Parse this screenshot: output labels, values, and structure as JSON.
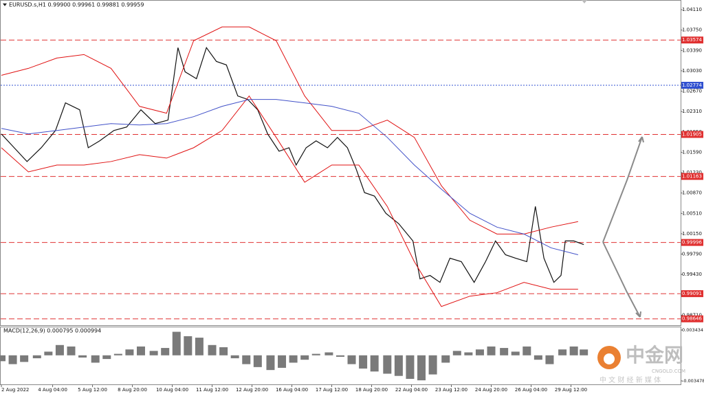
{
  "chart_data": [
    {
      "type": "line",
      "title": "EURUSD.s,H1  0.99900 0.99961 0.99881 0.99959",
      "xlim": [
        0,
        477
      ],
      "ylim": [
        0.98533,
        1.04269
      ],
      "xticks": [
        {
          "value": 0,
          "label": "2 Aug 2022"
        },
        {
          "value": 36,
          "label": "4 Aug 04:00"
        },
        {
          "value": 64,
          "label": "5 Aug 12:00"
        },
        {
          "value": 92,
          "label": "8 Aug 20:00"
        },
        {
          "value": 120,
          "label": "10 Aug 04:00"
        },
        {
          "value": 148,
          "label": "11 Aug 12:00"
        },
        {
          "value": 176,
          "label": "12 Aug 20:00"
        },
        {
          "value": 204,
          "label": "16 Aug 04:00"
        },
        {
          "value": 232,
          "label": "17 Aug 12:00"
        },
        {
          "value": 260,
          "label": "18 Aug 20:00"
        },
        {
          "value": 288,
          "label": "22 Aug 04:00"
        },
        {
          "value": 316,
          "label": "23 Aug 12:00"
        },
        {
          "value": 344,
          "label": "24 Aug 20:00"
        },
        {
          "value": 372,
          "label": "26 Aug 04:00"
        },
        {
          "value": 400,
          "label": "29 Aug 12:00"
        }
      ],
      "yticks": [
        {
          "value": 1.0411,
          "label": "1.04110"
        },
        {
          "value": 1.0375,
          "label": "1.03750"
        },
        {
          "value": 1.0339,
          "label": "1.03390"
        },
        {
          "value": 1.0303,
          "label": "1.03030"
        },
        {
          "value": 1.0267,
          "label": "1.02670"
        },
        {
          "value": 1.0231,
          "label": "1.02310"
        },
        {
          "value": 1.0195,
          "label": "1.01950"
        },
        {
          "value": 1.0159,
          "label": "1.01590"
        },
        {
          "value": 1.0123,
          "label": "1.01230"
        },
        {
          "value": 1.0087,
          "label": "1.00870"
        },
        {
          "value": 1.0051,
          "label": "1.00510"
        },
        {
          "value": 1.0015,
          "label": "1.00150"
        },
        {
          "value": 0.9979,
          "label": "0.99790"
        },
        {
          "value": 0.9943,
          "label": "0.99430"
        },
        {
          "value": 0.9907,
          "label": "0.99070"
        },
        {
          "value": 0.9871,
          "label": "0.98710"
        }
      ],
      "levels": [
        {
          "value": 1.03574,
          "color": "#e03030",
          "style": "dashed"
        },
        {
          "value": 1.02774,
          "color": "#3050d0",
          "style": "dotted"
        },
        {
          "value": 1.01905,
          "color": "#e03030",
          "style": "dashed"
        },
        {
          "value": 1.01163,
          "color": "#e03030",
          "style": "dashed"
        },
        {
          "value": 0.99996,
          "color": "#e03030",
          "style": "dashed"
        },
        {
          "value": 0.99091,
          "color": "#e03030",
          "style": "dashed"
        },
        {
          "value": 0.98646,
          "color": "#e03030",
          "style": "dashed"
        }
      ],
      "series": [
        {
          "name": "Close",
          "color": "#111111",
          "x": [
            0,
            9,
            18,
            28,
            38,
            45,
            55,
            61,
            69,
            79,
            88,
            98,
            108,
            117,
            124,
            129,
            137,
            144,
            151,
            158,
            166,
            173,
            180,
            187,
            195,
            202,
            207,
            214,
            221,
            229,
            236,
            243,
            249,
            255,
            262,
            270,
            279,
            289,
            294,
            301,
            308,
            315,
            323,
            332,
            340,
            347,
            354,
            361,
            369,
            375,
            381,
            388,
            393,
            396,
            402,
            409
          ],
          "values": [
            1.01914,
            1.0167,
            1.01426,
            1.0167,
            1.01975,
            1.02463,
            1.02341,
            1.0167,
            1.01792,
            1.01975,
            1.02036,
            1.02341,
            1.02097,
            1.02158,
            1.03439,
            1.03012,
            1.0289,
            1.03439,
            1.03195,
            1.03134,
            1.02585,
            1.02524,
            1.02341,
            1.01914,
            1.01609,
            1.0167,
            1.01365,
            1.0167,
            1.01792,
            1.0167,
            1.01853,
            1.0167,
            1.01304,
            1.00877,
            1.00816,
            1.00511,
            1.00328,
            1.00023,
            0.99352,
            0.99413,
            0.99291,
            0.99718,
            0.99657,
            0.99291,
            0.99657,
            1.00023,
            0.99779,
            0.99718,
            0.99657,
            1.00633,
            0.99718,
            0.99291,
            0.99413,
            1.00023,
            1.00023,
            0.99959
          ]
        },
        {
          "name": "Upper band",
          "color": "#e01010",
          "x": [
            0,
            19,
            39,
            58,
            77,
            97,
            116,
            135,
            155,
            174,
            193,
            213,
            232,
            251,
            271,
            290,
            309,
            329,
            348,
            367,
            386,
            405
          ],
          "values": [
            1.02951,
            1.03073,
            1.03256,
            1.03317,
            1.03073,
            1.02402,
            1.0228,
            1.03561,
            1.03805,
            1.03805,
            1.03561,
            1.02585,
            1.01975,
            1.01975,
            1.02158,
            1.01853,
            1.00999,
            1.00389,
            1.00145,
            1.00145,
            1.00267,
            1.00365
          ]
        },
        {
          "name": "Lower band",
          "color": "#e01010",
          "x": [
            0,
            19,
            39,
            58,
            77,
            97,
            116,
            135,
            155,
            174,
            193,
            213,
            232,
            251,
            271,
            290,
            309,
            329,
            348,
            367,
            386,
            405
          ],
          "values": [
            1.0167,
            1.01243,
            1.01365,
            1.01365,
            1.01426,
            1.01548,
            1.01487,
            1.0167,
            1.01975,
            1.02585,
            1.01853,
            1.0106,
            1.01365,
            1.01365,
            1.00633,
            0.99657,
            0.98864,
            0.99047,
            0.99108,
            0.99291,
            0.99169,
            0.99169
          ]
        },
        {
          "name": "Moving average",
          "color": "#4050c8",
          "x": [
            0,
            19,
            39,
            58,
            77,
            97,
            116,
            135,
            155,
            174,
            193,
            213,
            232,
            251,
            271,
            290,
            309,
            329,
            348,
            367,
            386,
            405
          ],
          "values": [
            1.02012,
            1.01914,
            1.01975,
            1.02036,
            1.02097,
            1.02073,
            1.02097,
            1.02219,
            1.02402,
            1.02524,
            1.02524,
            1.02463,
            1.02402,
            1.0228,
            1.01853,
            1.01365,
            1.00938,
            1.00511,
            1.00267,
            1.00145,
            0.99901,
            0.99779
          ]
        }
      ]
    },
    {
      "type": "bar",
      "title": "MACD(12,26,9) 0.000795 0.000994",
      "color": "#7a7a7a",
      "xlim": [
        0,
        477
      ],
      "ylim": [
        -0.00395,
        0.00381
      ],
      "yticks": [
        0.003434,
        -0.003478
      ],
      "x": [
        0,
        8,
        16,
        25,
        33,
        41,
        49,
        57,
        66,
        74,
        82,
        90,
        98,
        107,
        115,
        123,
        131,
        139,
        148,
        156,
        164,
        172,
        180,
        189,
        197,
        205,
        213,
        221,
        230,
        238,
        246,
        254,
        262,
        271,
        279,
        287,
        295,
        303,
        312,
        320,
        328,
        336,
        344,
        353,
        361,
        369,
        377,
        385,
        394,
        402,
        409
      ],
      "values": [
        -0.0008,
        -0.0012,
        -0.0009,
        -0.0004,
        0.0005,
        0.0014,
        0.0012,
        -0.0003,
        -0.001,
        -0.0005,
        0.0002,
        0.0008,
        0.0012,
        0.0006,
        0.001,
        0.0032,
        0.0026,
        0.0024,
        0.0014,
        0.0011,
        -0.0004,
        -0.0012,
        -0.0016,
        -0.002,
        -0.0017,
        -0.001,
        -0.0006,
        0.0002,
        0.0004,
        -0.0002,
        -0.0012,
        -0.0018,
        -0.0022,
        -0.0025,
        -0.0028,
        -0.0032,
        -0.0034,
        -0.0026,
        -0.001,
        0.0006,
        0.0004,
        0.0008,
        0.0012,
        0.001,
        0.0005,
        0.0012,
        -0.0006,
        -0.0012,
        0.0008,
        0.0012,
        0.000795
      ]
    }
  ],
  "watermark": {
    "name": "中金网",
    "site": "CNGOLD.COM",
    "slogan": "中 文 财 经 新 媒 体"
  }
}
